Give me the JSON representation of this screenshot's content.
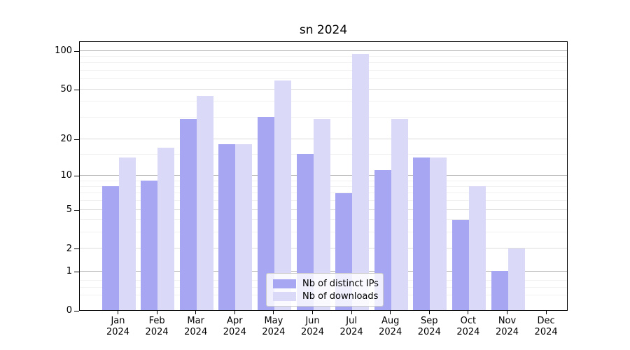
{
  "title": "sn 2024",
  "legend": {
    "items": [
      {
        "label": "Nb of distinct IPs",
        "series": "ips"
      },
      {
        "label": "Nb of downloads",
        "series": "downloads"
      }
    ]
  },
  "colors": {
    "ips": "#a6a6f2",
    "downloads": "#dadaf8",
    "grid_decade": "#b3b3b3",
    "grid_labeled": "#dcdcdc",
    "grid_minor": "#f1f1f1",
    "axis": "#000000",
    "text": "#000000",
    "legend_border": "#cccccc"
  },
  "chart_data": {
    "type": "bar",
    "title": "sn 2024",
    "categories": [
      "Jan 2024",
      "Feb 2024",
      "Mar 2024",
      "Apr 2024",
      "May 2024",
      "Jun 2024",
      "Jul 2024",
      "Aug 2024",
      "Sep 2024",
      "Oct 2024",
      "Nov 2024",
      "Dec 2024"
    ],
    "series": [
      {
        "name": "Nb of distinct IPs",
        "key": "ips",
        "values": [
          8,
          9,
          29,
          18,
          30,
          15,
          7,
          11,
          14,
          4,
          1,
          0
        ]
      },
      {
        "name": "Nb of downloads",
        "key": "downloads",
        "values": [
          14,
          17,
          44,
          18,
          58,
          29,
          94,
          29,
          14,
          8,
          2,
          0
        ]
      }
    ],
    "xlabel": "",
    "ylabel": "",
    "yaxis": {
      "scale": "log1p",
      "ylim": [
        0,
        120
      ],
      "major_ticks": [
        100,
        50,
        20,
        10,
        5,
        2,
        1,
        0
      ],
      "decade_ticks": [
        1,
        10,
        100
      ],
      "minor_ticks": [
        0.3,
        0.5,
        0.7,
        3,
        4,
        6,
        7,
        8,
        9,
        15,
        30,
        40,
        60,
        70,
        80,
        90
      ]
    },
    "grid": true,
    "legend_position": "lower center inside"
  }
}
